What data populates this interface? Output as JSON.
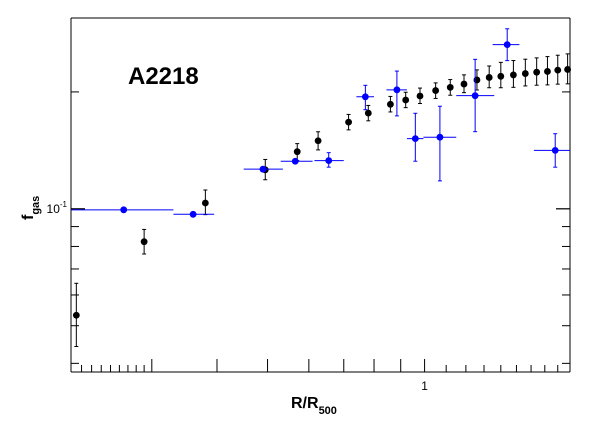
{
  "chart_data": {
    "type": "scatter",
    "title": "A2218",
    "xlabel": {
      "main": "R/R",
      "sub": "500"
    },
    "ylabel": {
      "main": "f",
      "sub": "gas"
    },
    "x_scale": "log",
    "y_scale": "log",
    "xlim": [
      0.21,
      1.9
    ],
    "ylim": [
      0.038,
      0.31
    ],
    "x_tick_labels": [
      {
        "value": 1,
        "label": "1"
      }
    ],
    "y_tick_labels": [
      {
        "value": 0.1,
        "label": "10",
        "exp": "-1"
      }
    ],
    "grid": false,
    "colors": {
      "black_series": "#000000",
      "blue_series": "#0000ff",
      "axes": "#000000"
    },
    "series": [
      {
        "color": "#000000",
        "marker": "circle",
        "points": [
          {
            "x": 0.215,
            "y": 0.0532,
            "ylo": 0.0442,
            "yhi": 0.0643
          },
          {
            "x": 0.29,
            "y": 0.0823,
            "ylo": 0.0765,
            "yhi": 0.0885
          },
          {
            "x": 0.38,
            "y": 0.1035,
            "ylo": 0.0966,
            "yhi": 0.1118
          },
          {
            "x": 0.495,
            "y": 0.126,
            "ylo": 0.1188,
            "yhi": 0.134
          },
          {
            "x": 0.57,
            "y": 0.1403,
            "ylo": 0.1331,
            "yhi": 0.1472
          },
          {
            "x": 0.625,
            "y": 0.1497,
            "ylo": 0.1418,
            "yhi": 0.1579
          },
          {
            "x": 0.715,
            "y": 0.1672,
            "ylo": 0.1597,
            "yhi": 0.175
          },
          {
            "x": 0.78,
            "y": 0.1764,
            "ylo": 0.1685,
            "yhi": 0.1846
          },
          {
            "x": 0.86,
            "y": 0.1858,
            "ylo": 0.1776,
            "yhi": 0.1947
          },
          {
            "x": 0.92,
            "y": 0.1906,
            "ylo": 0.1822,
            "yhi": 0.1996
          },
          {
            "x": 0.98,
            "y": 0.1952,
            "ylo": 0.1867,
            "yhi": 0.2046
          },
          {
            "x": 1.05,
            "y": 0.2016,
            "ylo": 0.1924,
            "yhi": 0.211
          },
          {
            "x": 1.12,
            "y": 0.2055,
            "ylo": 0.1961,
            "yhi": 0.2152
          },
          {
            "x": 1.19,
            "y": 0.2095,
            "ylo": 0.1991,
            "yhi": 0.2213
          },
          {
            "x": 1.26,
            "y": 0.2147,
            "ylo": 0.2023,
            "yhi": 0.2279
          },
          {
            "x": 1.33,
            "y": 0.2179,
            "ylo": 0.205,
            "yhi": 0.2332
          },
          {
            "x": 1.4,
            "y": 0.2194,
            "ylo": 0.205,
            "yhi": 0.2383
          },
          {
            "x": 1.48,
            "y": 0.2212,
            "ylo": 0.2055,
            "yhi": 0.2409
          },
          {
            "x": 1.56,
            "y": 0.223,
            "ylo": 0.2072,
            "yhi": 0.2428
          },
          {
            "x": 1.64,
            "y": 0.2248,
            "ylo": 0.2081,
            "yhi": 0.2447
          },
          {
            "x": 1.72,
            "y": 0.2258,
            "ylo": 0.2085,
            "yhi": 0.2466
          },
          {
            "x": 1.8,
            "y": 0.2276,
            "ylo": 0.2094,
            "yhi": 0.2486
          },
          {
            "x": 1.88,
            "y": 0.2285,
            "ylo": 0.2098,
            "yhi": 0.2506
          }
        ]
      },
      {
        "color": "#0000ff",
        "marker": "circle",
        "points": [
          {
            "x": 0.265,
            "y": 0.0994,
            "xlo": 0.21,
            "xhi": 0.33
          },
          {
            "x": 0.36,
            "y": 0.0968,
            "xlo": 0.33,
            "xhi": 0.395
          },
          {
            "x": 0.49,
            "y": 0.1265,
            "xlo": 0.45,
            "xhi": 0.535
          },
          {
            "x": 0.565,
            "y": 0.1326,
            "xlo": 0.53,
            "xhi": 0.61
          },
          {
            "x": 0.655,
            "y": 0.1331,
            "xlo": 0.615,
            "xhi": 0.7,
            "ylo": 0.128,
            "yhi": 0.1395
          },
          {
            "x": 0.77,
            "y": 0.1943,
            "xlo": 0.74,
            "xhi": 0.8,
            "ylo": 0.18,
            "yhi": 0.208
          },
          {
            "x": 0.885,
            "y": 0.2025,
            "xlo": 0.845,
            "xhi": 0.925,
            "ylo": 0.1735,
            "yhi": 0.2263
          },
          {
            "x": 0.96,
            "y": 0.1516,
            "xlo": 0.925,
            "xhi": 0.995,
            "ylo": 0.1326,
            "yhi": 0.1762
          },
          {
            "x": 1.07,
            "y": 0.1529,
            "xlo": 0.995,
            "xhi": 1.15,
            "ylo": 0.118,
            "yhi": 0.1837
          },
          {
            "x": 1.25,
            "y": 0.1956,
            "xlo": 1.15,
            "xhi": 1.36,
            "ylo": 0.158,
            "yhi": 0.2426
          },
          {
            "x": 1.44,
            "y": 0.2647,
            "xlo": 1.35,
            "xhi": 1.52,
            "ylo": 0.2408,
            "yhi": 0.2908
          },
          {
            "x": 1.78,
            "y": 0.1414,
            "xlo": 1.62,
            "xhi": 1.9,
            "ylo": 0.128,
            "yhi": 0.1561
          }
        ]
      }
    ]
  }
}
